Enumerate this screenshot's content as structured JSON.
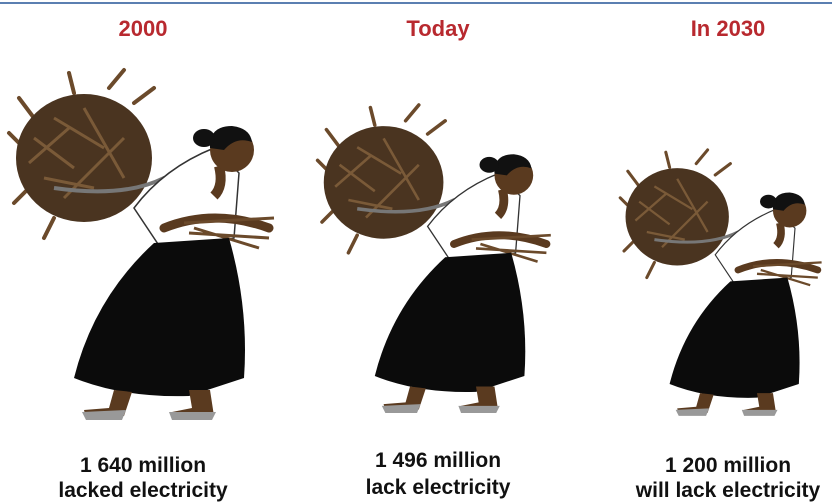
{
  "panels": [
    {
      "title": "2000",
      "amount": "1 640 million",
      "caption": "lacked electricity"
    },
    {
      "title": "Today",
      "amount": "1 496 million",
      "caption": "lack electricity"
    },
    {
      "title": "In 2030",
      "amount": "1 200 million",
      "caption": "will lack electricity"
    }
  ]
}
